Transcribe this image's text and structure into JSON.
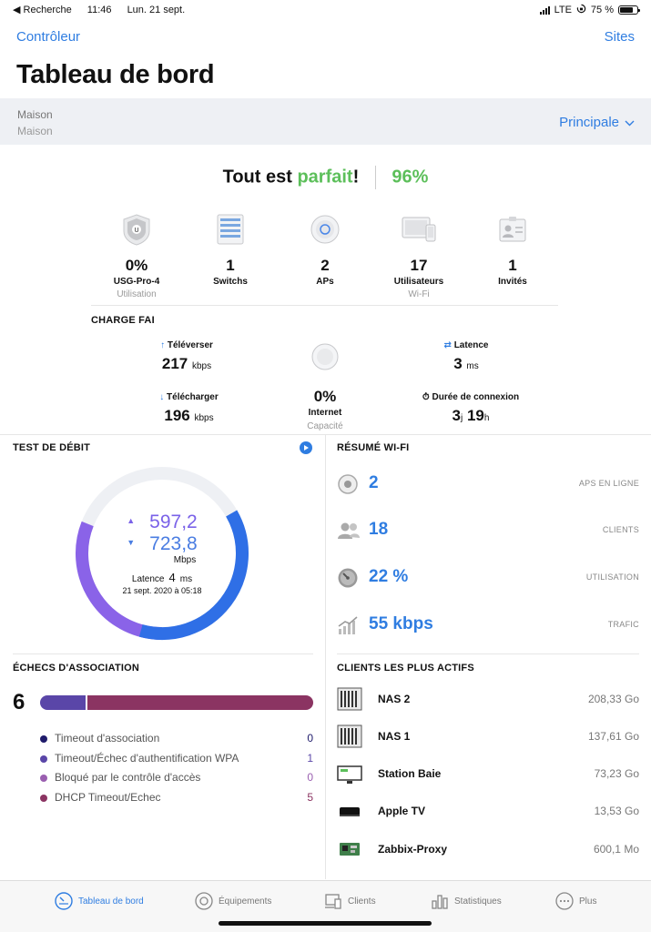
{
  "status_bar": {
    "carrier": "◀ Recherche",
    "time": "11:46",
    "date": "Lun. 21 sept.",
    "network": "LTE",
    "battery": "75 %",
    "battery_level": 0.75
  },
  "nav": {
    "back": "Contrôleur",
    "sites": "Sites"
  },
  "page_title": "Tableau de bord",
  "site": {
    "name": "Maison",
    "subtitle": "Maison",
    "selector": "Principale"
  },
  "health": {
    "prefix": "Tout est ",
    "status": "parfait",
    "suffix": "!",
    "score": "96%"
  },
  "devices": [
    {
      "value": "0%",
      "label": "USG-Pro-4",
      "sub": "Utilisation",
      "icon": "gateway-icon"
    },
    {
      "value": "1",
      "label": "Switchs",
      "sub": "",
      "icon": "switch-icon"
    },
    {
      "value": "2",
      "label": "APs",
      "sub": "",
      "icon": "access-point-icon"
    },
    {
      "value": "17",
      "label": "Utilisateurs",
      "sub": "Wi-Fi",
      "icon": "devices-icon"
    },
    {
      "value": "1",
      "label": "Invités",
      "sub": "",
      "icon": "guest-badge-icon"
    }
  ],
  "isp": {
    "title": "CHARGE FAI",
    "upload": {
      "label": "Téléverser",
      "value": "217",
      "unit": "kbps"
    },
    "download": {
      "label": "Télécharger",
      "value": "196",
      "unit": "kbps"
    },
    "internet": {
      "value": "0%",
      "label": "Internet",
      "sub": "Capacité"
    },
    "latency": {
      "label": "Latence",
      "value": "3",
      "unit": "ms"
    },
    "uptime": {
      "label": "Durée de connexion",
      "days": "3",
      "days_unit": "j",
      "hours": "19",
      "hours_unit": "h"
    }
  },
  "speedtest": {
    "title": "TEST DE DÉBIT",
    "upload": "597,2",
    "download": "723,8",
    "unit": "Mbps",
    "latency_label": "Latence",
    "latency_value": "4",
    "latency_unit": "ms",
    "date": "21 sept. 2020 à 05:18",
    "colors": {
      "upload": "#8a63e8",
      "download": "#2f6fe6",
      "track": "#eef0f4"
    }
  },
  "wifi_summary": {
    "title": "RÉSUMÉ WI-FI",
    "rows": [
      {
        "value": "2",
        "label": "APS EN LIGNE",
        "icon": "ap-online-icon"
      },
      {
        "value": "18",
        "label": "CLIENTS",
        "icon": "clients-icon"
      },
      {
        "value": "22 %",
        "label": "UTILISATION",
        "icon": "gauge-icon"
      },
      {
        "value": "55 kbps",
        "label": "TRAFIC",
        "icon": "traffic-icon"
      }
    ]
  },
  "association_failures": {
    "title": "ÉCHECS D'ASSOCIATION",
    "total": "6",
    "items": [
      {
        "label": "Timeout d'association",
        "count": "0",
        "color": "#1f1b6b"
      },
      {
        "label": "Timeout/Échec  d'authentification WPA",
        "count": "1",
        "color": "#5a46a8"
      },
      {
        "label": "Bloqué par le contrôle d'accès",
        "count": "0",
        "color": "#9a5fb0"
      },
      {
        "label": "DHCP Timeout/Echec",
        "count": "5",
        "color": "#8b3462"
      }
    ]
  },
  "top_clients": {
    "title": "CLIENTS LES PLUS ACTIFS",
    "items": [
      {
        "name": "NAS 2",
        "amount": "208,33 Go",
        "icon": "nas-icon"
      },
      {
        "name": "NAS 1",
        "amount": "137,61 Go",
        "icon": "nas-icon"
      },
      {
        "name": "Station Baie",
        "amount": "73,23 Go",
        "icon": "monitor-icon"
      },
      {
        "name": "Apple TV",
        "amount": "13,53 Go",
        "icon": "apple-tv-icon"
      },
      {
        "name": "Zabbix-Proxy",
        "amount": "600,1 Mo",
        "icon": "raspberry-board-icon"
      }
    ]
  },
  "tabs": [
    {
      "label": "Tableau de bord",
      "active": true
    },
    {
      "label": "Équipements",
      "active": false
    },
    {
      "label": "Clients",
      "active": false
    },
    {
      "label": "Statistiques",
      "active": false
    },
    {
      "label": "Plus",
      "active": false
    }
  ]
}
